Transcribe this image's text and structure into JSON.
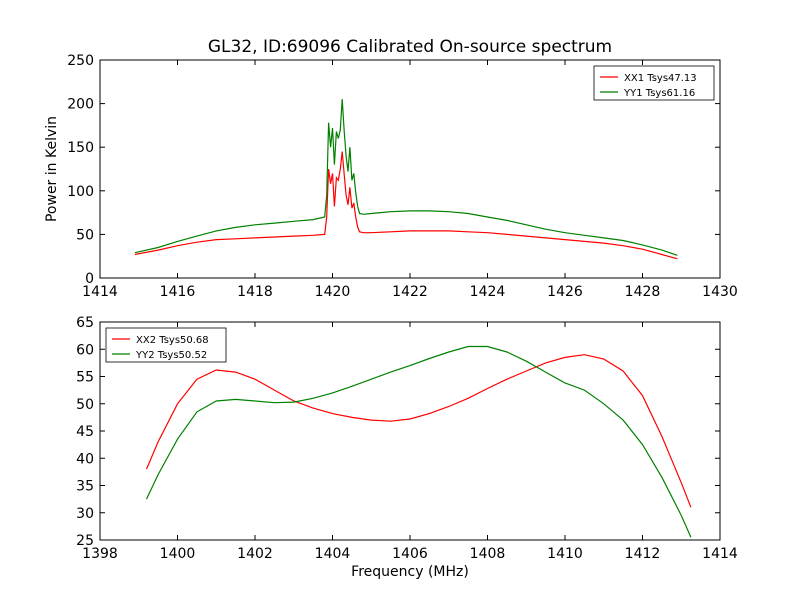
{
  "figure": {
    "title": "GL32, ID:69096 Calibrated On-source spectrum",
    "xlabel": "Frequency (MHz)"
  },
  "chart_data": [
    {
      "type": "line",
      "title": "GL32, ID:69096 Calibrated On-source spectrum",
      "xlabel": "",
      "ylabel": "Power in Kelvin",
      "xlim": [
        1414,
        1430
      ],
      "ylim": [
        0,
        250
      ],
      "xticks": [
        1414,
        1416,
        1418,
        1420,
        1422,
        1424,
        1426,
        1428,
        1430
      ],
      "yticks": [
        0,
        50,
        100,
        150,
        200,
        250
      ],
      "grid": false,
      "legend": "top-right",
      "series": [
        {
          "name": "XX1 Tsys47.13",
          "color": "#ff0000",
          "x": [
            1414.9,
            1415.5,
            1416.0,
            1416.5,
            1417.0,
            1417.5,
            1418.0,
            1418.5,
            1419.0,
            1419.5,
            1419.8,
            1419.85,
            1419.9,
            1419.95,
            1420.0,
            1420.05,
            1420.1,
            1420.15,
            1420.2,
            1420.25,
            1420.3,
            1420.35,
            1420.4,
            1420.45,
            1420.5,
            1420.55,
            1420.6,
            1420.65,
            1420.7,
            1420.8,
            1421.0,
            1421.5,
            1422.0,
            1422.5,
            1423.0,
            1423.5,
            1424.0,
            1424.5,
            1425.0,
            1425.5,
            1426.0,
            1426.5,
            1427.0,
            1427.5,
            1428.0,
            1428.5,
            1428.9
          ],
          "values": [
            27,
            32,
            37,
            41,
            44,
            45,
            46,
            47,
            48,
            49,
            50,
            70,
            125,
            108,
            120,
            82,
            115,
            112,
            125,
            145,
            120,
            95,
            84,
            104,
            80,
            86,
            70,
            58,
            53,
            52,
            52,
            53,
            54,
            54,
            54,
            53,
            52,
            50,
            48,
            46,
            44,
            42,
            40,
            37,
            33,
            27,
            22
          ]
        },
        {
          "name": "YY1 Tsys61.16",
          "color": "#008000",
          "x": [
            1414.9,
            1415.5,
            1416.0,
            1416.5,
            1417.0,
            1417.5,
            1418.0,
            1418.5,
            1419.0,
            1419.5,
            1419.8,
            1419.85,
            1419.9,
            1419.95,
            1420.0,
            1420.05,
            1420.1,
            1420.15,
            1420.2,
            1420.25,
            1420.3,
            1420.35,
            1420.4,
            1420.45,
            1420.5,
            1420.55,
            1420.6,
            1420.65,
            1420.7,
            1420.8,
            1421.0,
            1421.5,
            1422.0,
            1422.5,
            1423.0,
            1423.5,
            1424.0,
            1424.5,
            1425.0,
            1425.5,
            1426.0,
            1426.5,
            1427.0,
            1427.5,
            1428.0,
            1428.5,
            1428.9
          ],
          "values": [
            29,
            35,
            42,
            48,
            54,
            58,
            61,
            63,
            65,
            67,
            70,
            95,
            178,
            150,
            172,
            130,
            168,
            160,
            170,
            205,
            170,
            140,
            122,
            150,
            112,
            120,
            98,
            82,
            74,
            73,
            74,
            76,
            77,
            77,
            76,
            74,
            70,
            66,
            61,
            56,
            52,
            49,
            46,
            43,
            38,
            32,
            26
          ]
        }
      ]
    },
    {
      "type": "line",
      "title": "",
      "xlabel": "Frequency (MHz)",
      "ylabel": "",
      "xlim": [
        1398,
        1414
      ],
      "ylim": [
        25,
        65
      ],
      "xticks": [
        1398,
        1400,
        1402,
        1404,
        1406,
        1408,
        1410,
        1412,
        1414
      ],
      "yticks": [
        25,
        30,
        35,
        40,
        45,
        50,
        55,
        60,
        65
      ],
      "grid": false,
      "legend": "top-left",
      "series": [
        {
          "name": "XX2 Tsys50.68",
          "color": "#ff0000",
          "x": [
            1399.2,
            1399.5,
            1400.0,
            1400.5,
            1401.0,
            1401.5,
            1402.0,
            1402.5,
            1403.0,
            1403.5,
            1404.0,
            1404.5,
            1405.0,
            1405.5,
            1406.0,
            1406.5,
            1407.0,
            1407.5,
            1408.0,
            1408.5,
            1409.0,
            1409.5,
            1410.0,
            1410.5,
            1411.0,
            1411.5,
            1412.0,
            1412.5,
            1413.0,
            1413.25
          ],
          "values": [
            38,
            43,
            50,
            54.5,
            56.2,
            55.8,
            54.5,
            52.5,
            50.5,
            49.2,
            48.2,
            47.5,
            47,
            46.8,
            47.2,
            48.2,
            49.5,
            51,
            52.8,
            54.5,
            56,
            57.5,
            58.5,
            59,
            58.2,
            56,
            51.5,
            44,
            35.5,
            31
          ]
        },
        {
          "name": "YY2 Tsys50.52",
          "color": "#008000",
          "x": [
            1399.2,
            1399.5,
            1400.0,
            1400.5,
            1401.0,
            1401.5,
            1402.0,
            1402.5,
            1403.0,
            1403.5,
            1404.0,
            1404.5,
            1405.0,
            1405.5,
            1406.0,
            1406.5,
            1407.0,
            1407.5,
            1408.0,
            1408.5,
            1409.0,
            1409.5,
            1410.0,
            1410.5,
            1411.0,
            1411.5,
            1412.0,
            1412.5,
            1413.0,
            1413.25
          ],
          "values": [
            32.5,
            37,
            43.5,
            48.5,
            50.5,
            50.8,
            50.5,
            50.2,
            50.3,
            51,
            52,
            53.2,
            54.5,
            55.8,
            57,
            58.3,
            59.5,
            60.5,
            60.5,
            59.5,
            57.8,
            55.8,
            53.8,
            52.5,
            50,
            47,
            42.5,
            36.5,
            29.5,
            25.5
          ]
        }
      ]
    }
  ]
}
